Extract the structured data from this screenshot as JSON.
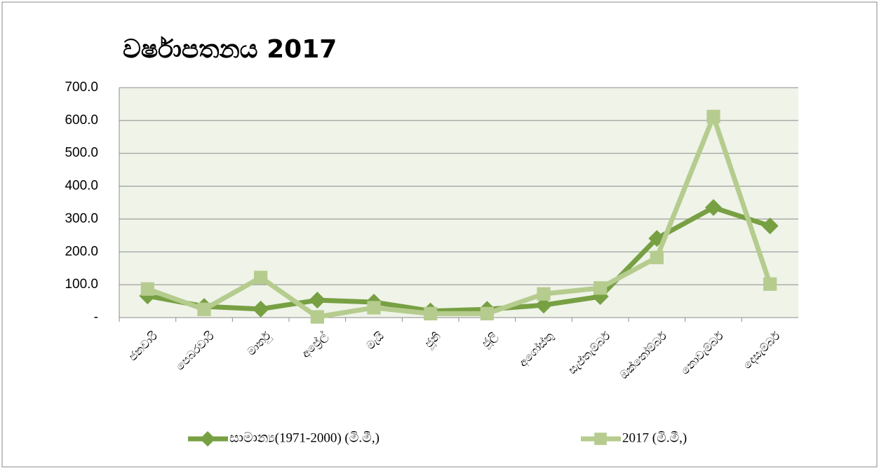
{
  "chart_data": {
    "type": "line",
    "title": "වර්ෂාපතනය 2017",
    "categories": [
      "ජනවාරි",
      "පෙබරවාරි",
      "මාර්තු",
      "අප්‍රේල්",
      "මැයි",
      "ජූනි",
      "ජූලි",
      "අගෝස්තු",
      "සැප්තැම්බර්",
      "ඔක්තෝම්බර්",
      "නොවැම්බර්",
      "දෙසැම්බර්"
    ],
    "series": [
      {
        "name": "සාමාන්‍ය(1971-2000) (මි.මී,)",
        "color": "#77a043",
        "marker": "diamond",
        "values": [
          66,
          34,
          26,
          53,
          47,
          20,
          25,
          38,
          64,
          241,
          335,
          279
        ]
      },
      {
        "name": "2017 (මි.මී,)",
        "color": "#b5cc8e",
        "marker": "square",
        "values": [
          87,
          25,
          122,
          2,
          30,
          12,
          12,
          72,
          90,
          183,
          612,
          102
        ]
      }
    ],
    "ylim": [
      0,
      700
    ],
    "yticks": [
      {
        "value": 0,
        "label": "-"
      },
      {
        "value": 100,
        "label": "100.0"
      },
      {
        "value": 200,
        "label": "200.0"
      },
      {
        "value": 300,
        "label": "300.0"
      },
      {
        "value": 400,
        "label": "400.0"
      },
      {
        "value": 500,
        "label": "500.0"
      },
      {
        "value": 600,
        "label": "600.0"
      },
      {
        "value": 700,
        "label": "700.0"
      }
    ],
    "grid": true,
    "legend": "bottom"
  }
}
